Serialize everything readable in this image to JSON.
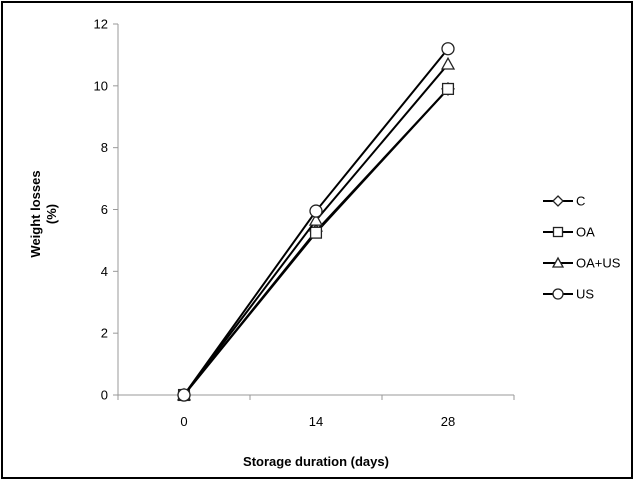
{
  "chart_data": {
    "type": "line",
    "title": "",
    "xlabel": "Storage duration (days)",
    "ylabel_line1": "Weight losses",
    "ylabel_line2": "(%)",
    "categories": [
      "0",
      "14",
      "28"
    ],
    "x": [
      0,
      14,
      28
    ],
    "ylim": [
      0,
      12
    ],
    "yticks": [
      "0",
      "2",
      "4",
      "6",
      "8",
      "10",
      "12"
    ],
    "grid": false,
    "legend_position": "right",
    "series": [
      {
        "name": "C",
        "marker": "diamond",
        "color": "#000000",
        "values": [
          0,
          5.3,
          9.9
        ]
      },
      {
        "name": "OA",
        "marker": "square",
        "color": "#000000",
        "values": [
          0,
          5.25,
          9.9
        ]
      },
      {
        "name": "OA+US",
        "marker": "triangle",
        "color": "#000000",
        "values": [
          0,
          5.65,
          10.7
        ]
      },
      {
        "name": "US",
        "marker": "circle",
        "color": "#000000",
        "values": [
          0,
          5.95,
          11.2
        ]
      }
    ]
  }
}
